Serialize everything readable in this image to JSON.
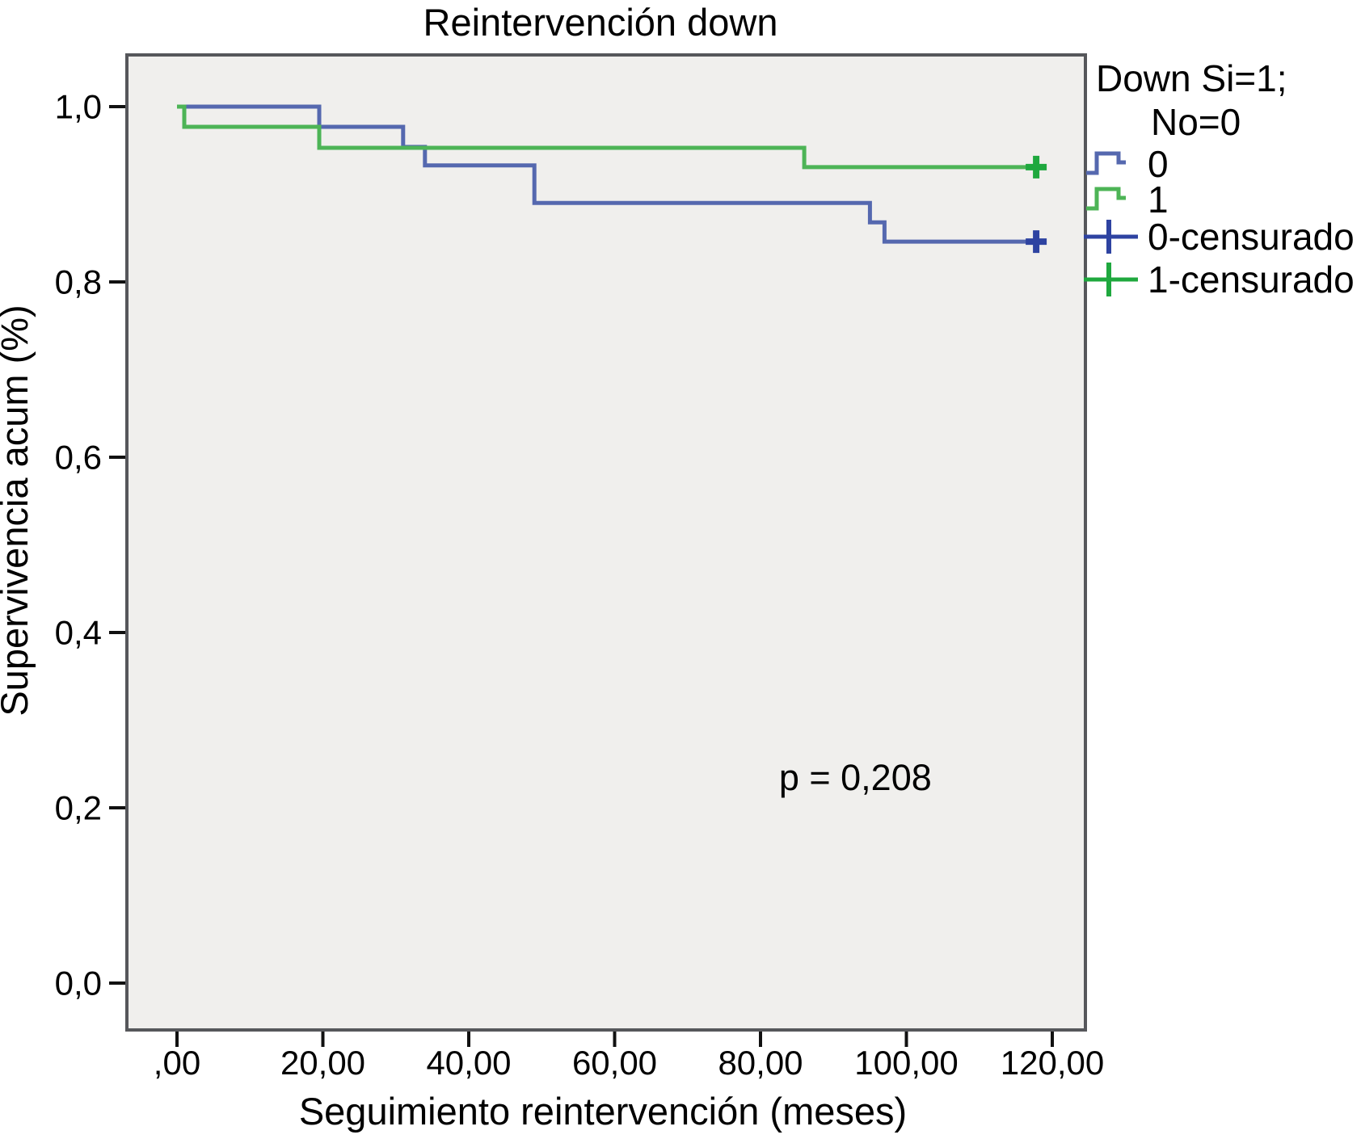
{
  "chart_data": {
    "type": "line",
    "km_style": "step-survival",
    "title": "Reintervención down",
    "xlabel": "Seguimiento reintervención (meses)",
    "ylabel": "Supervivencia acum (%)",
    "xlim": [
      0,
      120
    ],
    "ylim": [
      0.0,
      1.0
    ],
    "grid": false,
    "plot_background": "#f0efed",
    "frame_color": "#56575b",
    "x_ticks": {
      "values": [
        0,
        20,
        40,
        60,
        80,
        100,
        120
      ],
      "labels": [
        ",00",
        "20,00",
        "40,00",
        "60,00",
        "80,00",
        "100,00",
        "120,00"
      ]
    },
    "y_ticks": {
      "values": [
        1.0,
        0.8,
        0.6,
        0.4,
        0.2,
        0.0
      ],
      "labels": [
        "1,0",
        "0,8",
        "0,6",
        "0,4",
        "0,2",
        "0,0"
      ]
    },
    "annotation": {
      "text": "p = 0,208",
      "x": 93,
      "y": 0.235
    },
    "legend": {
      "position": "right",
      "title_lines": [
        "Down Si=1;",
        "No=0"
      ],
      "items": [
        {
          "label": "0",
          "symbol": "step",
          "color": "#5568af"
        },
        {
          "label": "1",
          "symbol": "step",
          "color": "#4db456"
        },
        {
          "label": "0-censurado",
          "symbol": "plus",
          "color": "#2e43a1"
        },
        {
          "label": "1-censurado",
          "symbol": "plus",
          "color": "#1fa83e"
        }
      ]
    },
    "series": [
      {
        "name": "0",
        "color": "#5568af",
        "censor_color": "#2e43a1",
        "steps": [
          [
            0,
            1.0
          ],
          [
            19.5,
            0.977
          ],
          [
            31,
            0.954
          ],
          [
            34,
            0.933
          ],
          [
            49,
            0.89
          ],
          [
            95,
            0.868
          ],
          [
            97,
            0.846
          ]
        ],
        "end_time": 119,
        "censored": [
          [
            117.8,
            0.846
          ]
        ]
      },
      {
        "name": "1",
        "color": "#4db456",
        "censor_color": "#1fa83e",
        "steps": [
          [
            0,
            1.0
          ],
          [
            1,
            0.977
          ],
          [
            19.5,
            0.953
          ],
          [
            86,
            0.931
          ]
        ],
        "end_time": 119,
        "censored": [
          [
            117.8,
            0.931
          ]
        ]
      }
    ]
  }
}
